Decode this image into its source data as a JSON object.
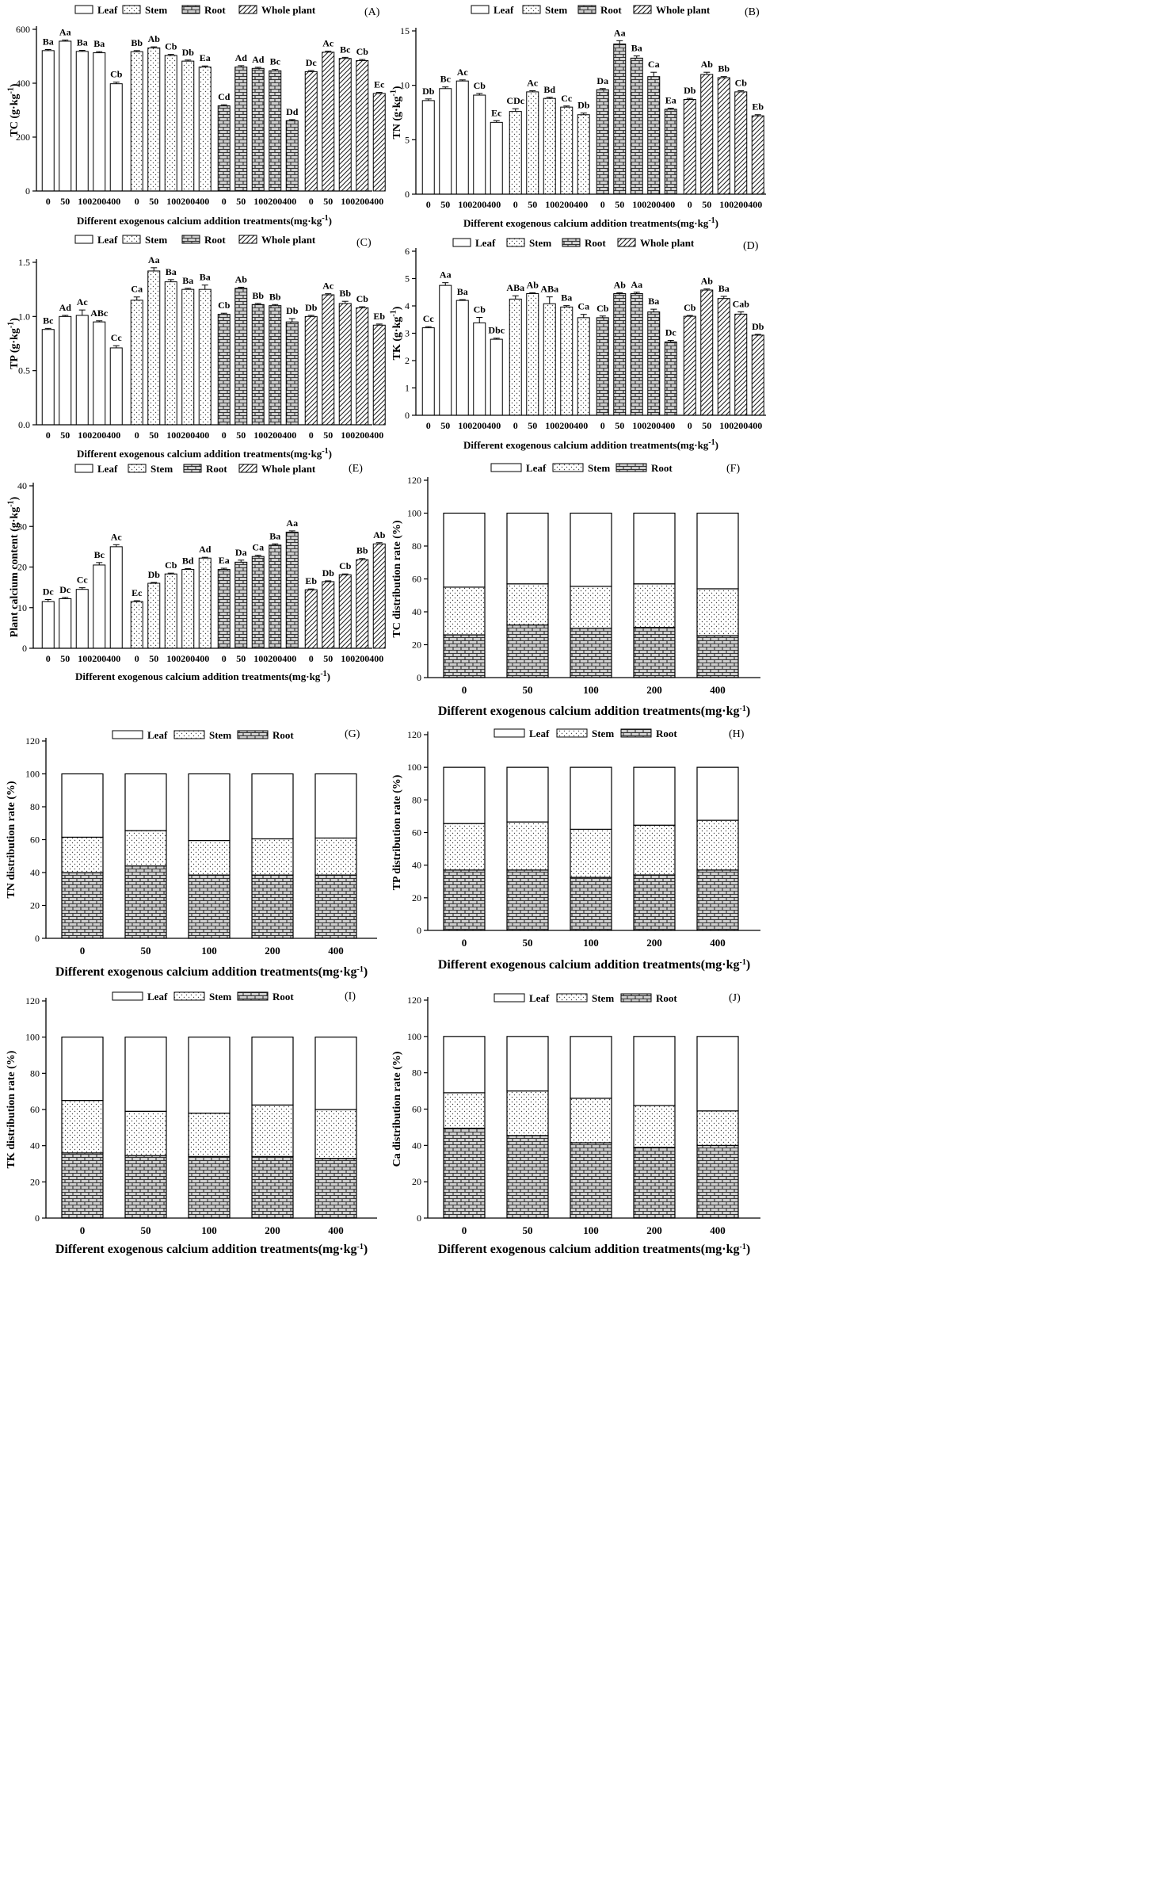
{
  "figure": {
    "x_title": "Different exogenous calcium addition treatments(mg·kg",
    "x_title_sup": "-1",
    "x_title_suffix": ")",
    "legend": [
      "Leaf",
      "Stem",
      "Root",
      "Whole plant"
    ],
    "treatments": [
      "0",
      "50",
      "100",
      "200",
      "400"
    ]
  },
  "chart_data": [
    {
      "id": "A",
      "type": "bar",
      "panel_label": "(A)",
      "ylabel": "TC (g·kg",
      "ylabel_sup": "-1",
      "ylim": [
        0,
        600
      ],
      "yticks": [
        0,
        200,
        400,
        600
      ],
      "xlabels": [
        "0",
        "50",
        "100200400"
      ],
      "groups": [
        "Leaf",
        "Stem",
        "Root",
        "Whole plant"
      ],
      "values": [
        [
          521,
          556,
          518,
          513,
          398
        ],
        [
          517,
          531,
          503,
          482,
          460
        ],
        [
          316,
          460,
          455,
          446,
          261
        ],
        [
          443,
          515,
          492,
          484,
          362
        ]
      ],
      "errors": [
        [
          4,
          4,
          4,
          4,
          6
        ],
        [
          4,
          4,
          4,
          4,
          4
        ],
        [
          4,
          5,
          4,
          5,
          4
        ],
        [
          4,
          4,
          4,
          4,
          4
        ]
      ],
      "letters": [
        [
          "Ba",
          "Aa",
          "Ba",
          "Ba",
          "Cb"
        ],
        [
          "Bb",
          "Ab",
          "Cb",
          "Db",
          "Ea"
        ],
        [
          "Cd",
          "Ad",
          "Ad",
          "Bc",
          "Dd"
        ],
        [
          "Dc",
          "Ac",
          "Bc",
          "Cb",
          "Ec"
        ]
      ]
    },
    {
      "id": "B",
      "type": "bar",
      "panel_label": "(B)",
      "ylabel": "TN (g·kg",
      "ylabel_sup": "-1",
      "ylim": [
        0,
        15
      ],
      "yticks": [
        0,
        5,
        10,
        15
      ],
      "xlabels": [
        "0",
        "50",
        "100200400"
      ],
      "groups": [
        "Leaf",
        "Stem",
        "Root",
        "Whole plant"
      ],
      "values": [
        [
          8.6,
          9.7,
          10.4,
          9.1,
          6.6
        ],
        [
          7.6,
          9.4,
          8.8,
          8.0,
          7.3
        ],
        [
          9.6,
          13.8,
          12.5,
          10.8,
          7.8
        ],
        [
          8.7,
          11.0,
          10.7,
          9.4,
          7.2
        ]
      ],
      "errors": [
        [
          0.15,
          0.15,
          0.1,
          0.15,
          0.15
        ],
        [
          0.25,
          0.1,
          0.1,
          0.1,
          0.15
        ],
        [
          0.1,
          0.3,
          0.2,
          0.4,
          0.1
        ],
        [
          0.1,
          0.2,
          0.1,
          0.1,
          0.1
        ]
      ],
      "letters": [
        [
          "Db",
          "Bc",
          "Ac",
          "Cb",
          "Ec"
        ],
        [
          "CDc",
          "Ac",
          "Bd",
          "Cc",
          "Db"
        ],
        [
          "Da",
          "Aa",
          "Ba",
          "Ca",
          "Ea"
        ],
        [
          "Db",
          "Ab",
          "Bb",
          "Cb",
          "Eb"
        ]
      ]
    },
    {
      "id": "C",
      "type": "bar",
      "panel_label": "(C)",
      "ylabel": "TP (g·kg",
      "ylabel_sup": "-1",
      "ylim": [
        0,
        1.5
      ],
      "yticks": [
        0.0,
        0.5,
        1.0,
        1.5
      ],
      "xlabels": [
        "0",
        "50",
        "100200400"
      ],
      "groups": [
        "Leaf",
        "Stem",
        "Root",
        "Whole plant"
      ],
      "values": [
        [
          0.88,
          1.0,
          1.01,
          0.95,
          0.71
        ],
        [
          1.15,
          1.42,
          1.32,
          1.25,
          1.25
        ],
        [
          1.02,
          1.26,
          1.11,
          1.1,
          0.95
        ],
        [
          1.0,
          1.2,
          1.12,
          1.08,
          0.92
        ]
      ],
      "errors": [
        [
          0.01,
          0.01,
          0.05,
          0.01,
          0.02
        ],
        [
          0.03,
          0.03,
          0.02,
          0.01,
          0.04
        ],
        [
          0.01,
          0.01,
          0.01,
          0.01,
          0.03
        ],
        [
          0.01,
          0.01,
          0.02,
          0.01,
          0.01
        ]
      ],
      "letters": [
        [
          "Bc",
          "Ad",
          "Ac",
          "ABc",
          "Cc"
        ],
        [
          "Ca",
          "Aa",
          "Ba",
          "Ba",
          "Ba"
        ],
        [
          "Cb",
          "Ab",
          "Bb",
          "Bb",
          "Db"
        ],
        [
          "Db",
          "Ac",
          "Bb",
          "Cb",
          "Eb"
        ]
      ]
    },
    {
      "id": "D",
      "type": "bar",
      "panel_label": "(D)",
      "ylabel": "TK (g·kg",
      "ylabel_sup": "-1",
      "ylim": [
        0,
        6
      ],
      "yticks": [
        0,
        1,
        2,
        3,
        4,
        5,
        6
      ],
      "xlabels": [
        "0",
        "50",
        "100200400"
      ],
      "groups": [
        "Leaf",
        "Stem",
        "Root",
        "Whole plant"
      ],
      "values": [
        [
          3.2,
          4.75,
          4.2,
          3.38,
          2.78
        ],
        [
          4.25,
          4.45,
          4.08,
          3.96,
          3.57
        ],
        [
          3.57,
          4.45,
          4.45,
          3.78,
          2.68
        ],
        [
          3.62,
          4.58,
          4.27,
          3.7,
          2.93
        ]
      ],
      "errors": [
        [
          0.04,
          0.1,
          0.03,
          0.2,
          0.04
        ],
        [
          0.12,
          0.03,
          0.25,
          0.05,
          0.12
        ],
        [
          0.06,
          0.03,
          0.05,
          0.1,
          0.06
        ],
        [
          0.03,
          0.04,
          0.08,
          0.08,
          0.03
        ]
      ],
      "letters": [
        [
          "Cc",
          "Aa",
          "Ba",
          "Cb",
          "Dbc"
        ],
        [
          "ABa",
          "Ab",
          "ABa",
          "Ba",
          "Ca"
        ],
        [
          "Cb",
          "Ab",
          "Aa",
          "Ba",
          "Dc"
        ],
        [
          "Cb",
          "Ab",
          "Ba",
          "Cab",
          "Db"
        ]
      ]
    },
    {
      "id": "E",
      "type": "bar",
      "panel_label": "(E)",
      "ylabel": "Plant calcium content (g·kg",
      "ylabel_sup": "-1",
      "ylim": [
        0,
        40
      ],
      "yticks": [
        0,
        10,
        20,
        30,
        40
      ],
      "xlabels": [
        "0",
        "50",
        "100200400"
      ],
      "groups": [
        "Leaf",
        "Stem",
        "Root",
        "Whole plant"
      ],
      "values": [
        [
          11.5,
          12.2,
          14.5,
          20.5,
          25.0
        ],
        [
          11.5,
          16.0,
          18.3,
          19.4,
          22.2
        ],
        [
          19.4,
          21.2,
          22.6,
          25.4,
          28.6
        ],
        [
          14.4,
          16.4,
          18.1,
          21.8,
          25.7
        ]
      ],
      "errors": [
        [
          0.5,
          0.3,
          0.4,
          0.6,
          0.5
        ],
        [
          0.2,
          0.2,
          0.2,
          0.2,
          0.2
        ],
        [
          0.3,
          0.5,
          0.3,
          0.3,
          0.3
        ],
        [
          0.2,
          0.2,
          0.2,
          0.3,
          0.3
        ]
      ],
      "letters": [
        [
          "Dc",
          "Dc",
          "Cc",
          "Bc",
          "Ac"
        ],
        [
          "Ec",
          "Db",
          "Cb",
          "Bd",
          "Ad"
        ],
        [
          "Ea",
          "Da",
          "Ca",
          "Ba",
          "Aa"
        ],
        [
          "Eb",
          "Db",
          "Cb",
          "Bb",
          "Ab"
        ]
      ]
    },
    {
      "id": "F",
      "type": "bar",
      "stacked": true,
      "panel_label": "(F)",
      "ylabel": "TC distribution rate (%)",
      "ylim": [
        0,
        120
      ],
      "yticks": [
        0,
        20,
        40,
        60,
        80,
        100,
        120
      ],
      "categories": [
        "0",
        "50",
        "100",
        "200",
        "400"
      ],
      "series": [
        {
          "name": "Root",
          "values": [
            26,
            32,
            30,
            30.5,
            25.5
          ]
        },
        {
          "name": "Stem",
          "values": [
            29,
            25,
            25.5,
            26.5,
            28.5
          ]
        },
        {
          "name": "Leaf",
          "values": [
            45,
            43,
            44.5,
            43,
            46
          ]
        }
      ]
    },
    {
      "id": "G",
      "type": "bar",
      "stacked": true,
      "panel_label": "(G)",
      "ylabel": "TN distribution rate (%)",
      "ylim": [
        0,
        120
      ],
      "yticks": [
        0,
        20,
        40,
        60,
        80,
        100,
        120
      ],
      "categories": [
        "0",
        "50",
        "100",
        "200",
        "400"
      ],
      "series": [
        {
          "name": "Root",
          "values": [
            40,
            44,
            38.5,
            38.5,
            38.5
          ]
        },
        {
          "name": "Stem",
          "values": [
            21.5,
            21.5,
            21,
            22,
            22.5
          ]
        },
        {
          "name": "Leaf",
          "values": [
            38.5,
            34.5,
            40.5,
            39.5,
            39
          ]
        }
      ]
    },
    {
      "id": "H",
      "type": "bar",
      "stacked": true,
      "panel_label": "(H)",
      "ylabel": "TP distribution rate (%)",
      "ylim": [
        0,
        120
      ],
      "yticks": [
        0,
        20,
        40,
        60,
        80,
        100,
        120
      ],
      "categories": [
        "0",
        "50",
        "100",
        "200",
        "400"
      ],
      "series": [
        {
          "name": "Root",
          "values": [
            37,
            37,
            32.5,
            34,
            37
          ]
        },
        {
          "name": "Stem",
          "values": [
            28.5,
            29.5,
            29.5,
            30.5,
            30.5
          ]
        },
        {
          "name": "Leaf",
          "values": [
            34.5,
            33.5,
            38,
            35.5,
            32.5
          ]
        }
      ]
    },
    {
      "id": "I",
      "type": "bar",
      "stacked": true,
      "panel_label": "(I)",
      "ylabel": "TK distribution rate (%)",
      "ylim": [
        0,
        120
      ],
      "yticks": [
        0,
        20,
        40,
        60,
        80,
        100,
        120
      ],
      "categories": [
        "0",
        "50",
        "100",
        "200",
        "400"
      ],
      "series": [
        {
          "name": "Root",
          "values": [
            36,
            34.5,
            34,
            34,
            33
          ]
        },
        {
          "name": "Stem",
          "values": [
            29,
            24.5,
            24,
            28.5,
            27
          ]
        },
        {
          "name": "Leaf",
          "values": [
            35,
            41,
            42,
            37.5,
            40
          ]
        }
      ]
    },
    {
      "id": "J",
      "type": "bar",
      "stacked": true,
      "panel_label": "(J)",
      "ylabel": "Ca distribution rate (%)",
      "ylim": [
        0,
        120
      ],
      "yticks": [
        0,
        20,
        40,
        60,
        80,
        100,
        120
      ],
      "categories": [
        "0",
        "50",
        "100",
        "200",
        "400"
      ],
      "series": [
        {
          "name": "Root",
          "values": [
            49.5,
            45.5,
            41.5,
            39,
            40
          ]
        },
        {
          "name": "Stem",
          "values": [
            19.5,
            24.5,
            24.5,
            23,
            19
          ]
        },
        {
          "name": "Leaf",
          "values": [
            31,
            30,
            34,
            38,
            41
          ]
        }
      ]
    }
  ]
}
